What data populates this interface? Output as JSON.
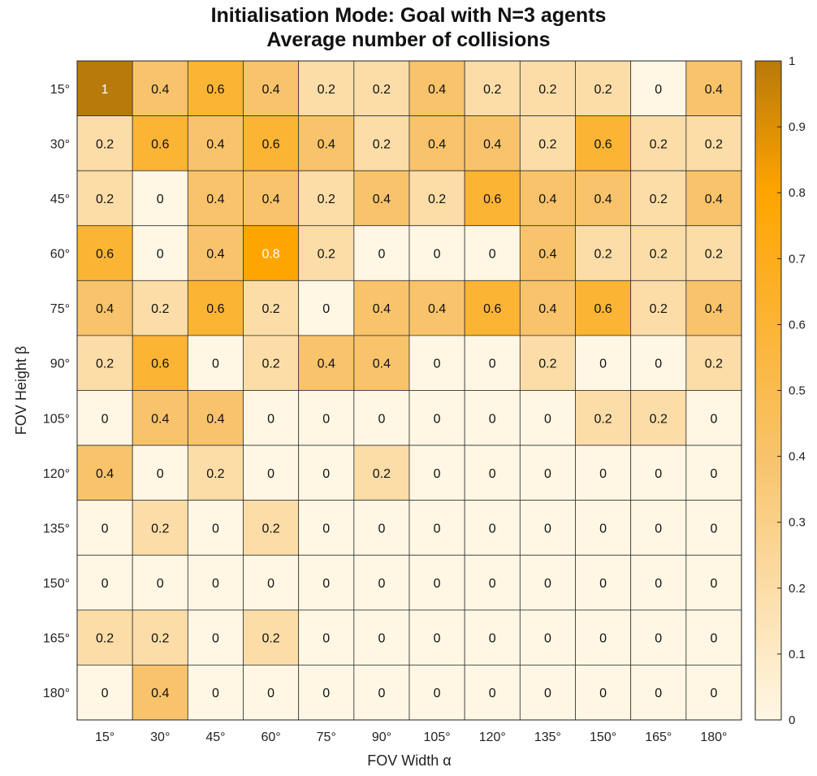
{
  "chart_data": {
    "type": "heatmap",
    "title": "Initialisation Mode: Goal with N=3 agents",
    "subtitle": "Average number of collisions",
    "xlabel": "FOV Width α",
    "ylabel": "FOV Height β",
    "x_categories": [
      "15°",
      "30°",
      "45°",
      "60°",
      "75°",
      "90°",
      "105°",
      "120°",
      "135°",
      "150°",
      "165°",
      "180°"
    ],
    "y_categories": [
      "15°",
      "30°",
      "45°",
      "60°",
      "75°",
      "90°",
      "105°",
      "120°",
      "135°",
      "150°",
      "165°",
      "180°"
    ],
    "values": [
      [
        1,
        0.4,
        0.6,
        0.4,
        0.2,
        0.2,
        0.4,
        0.2,
        0.2,
        0.2,
        0,
        0.4
      ],
      [
        0.2,
        0.6,
        0.4,
        0.6,
        0.4,
        0.2,
        0.4,
        0.4,
        0.2,
        0.6,
        0.2,
        0.2
      ],
      [
        0.2,
        0,
        0.4,
        0.4,
        0.2,
        0.4,
        0.2,
        0.6,
        0.4,
        0.4,
        0.2,
        0.4
      ],
      [
        0.6,
        0,
        0.4,
        0.8,
        0.2,
        0,
        0,
        0,
        0.4,
        0.2,
        0.2,
        0.2
      ],
      [
        0.4,
        0.2,
        0.6,
        0.2,
        0,
        0.4,
        0.4,
        0.6,
        0.4,
        0.6,
        0.2,
        0.4
      ],
      [
        0.2,
        0.6,
        0,
        0.2,
        0.4,
        0.4,
        0,
        0,
        0.2,
        0,
        0,
        0.2
      ],
      [
        0,
        0.4,
        0.4,
        0,
        0,
        0,
        0,
        0,
        0,
        0.2,
        0.2,
        0
      ],
      [
        0.4,
        0,
        0.2,
        0,
        0,
        0.2,
        0,
        0,
        0,
        0,
        0,
        0
      ],
      [
        0,
        0.2,
        0,
        0.2,
        0,
        0,
        0,
        0,
        0,
        0,
        0,
        0
      ],
      [
        0,
        0,
        0,
        0,
        0,
        0,
        0,
        0,
        0,
        0,
        0,
        0
      ],
      [
        0.2,
        0.2,
        0,
        0.2,
        0,
        0,
        0,
        0,
        0,
        0,
        0,
        0
      ],
      [
        0,
        0.4,
        0,
        0,
        0,
        0,
        0,
        0,
        0,
        0,
        0,
        0
      ]
    ],
    "colorbar": {
      "range": [
        0,
        1
      ],
      "ticks": [
        "0",
        "0.1",
        "0.2",
        "0.3",
        "0.4",
        "0.5",
        "0.6",
        "0.7",
        "0.8",
        "0.9",
        "1"
      ],
      "stops": [
        {
          "v": 0,
          "color": "#FFF7E4"
        },
        {
          "v": 0.4,
          "color": "#F8C36A"
        },
        {
          "v": 0.8,
          "color": "#FFA500"
        },
        {
          "v": 1,
          "color": "#B87A0A"
        }
      ]
    },
    "grid": true,
    "legend": "colorbar-right"
  }
}
